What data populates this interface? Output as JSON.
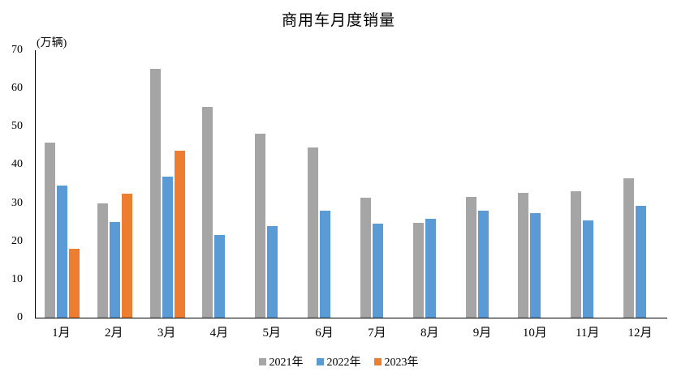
{
  "chart_data": {
    "type": "bar",
    "title": "商用车月度销量",
    "unit_label": "(万辆)",
    "categories": [
      "1月",
      "2月",
      "3月",
      "4月",
      "5月",
      "6月",
      "7月",
      "8月",
      "9月",
      "10月",
      "11月",
      "12月"
    ],
    "series": [
      {
        "name": "2021年",
        "color": "#A5A5A5",
        "values": [
          45.8,
          29.9,
          65.2,
          55.1,
          48.2,
          44.6,
          31.3,
          24.8,
          31.7,
          32.6,
          33.1,
          36.5
        ]
      },
      {
        "name": "2022年",
        "color": "#5B9BD5",
        "values": [
          34.5,
          25.0,
          37.0,
          21.6,
          24.0,
          28.1,
          24.6,
          25.9,
          28.0,
          27.3,
          25.4,
          29.2
        ]
      },
      {
        "name": "2023年",
        "color": "#ED7D31",
        "values": [
          18.0,
          32.4,
          43.7,
          null,
          null,
          null,
          null,
          null,
          null,
          null,
          null,
          null
        ]
      }
    ],
    "ylim": [
      0,
      70
    ],
    "yticks": [
      0,
      10,
      20,
      30,
      40,
      50,
      60,
      70
    ],
    "grid": false,
    "legend_position": "bottom",
    "axis_color": "#000000",
    "text_color": "#000000",
    "background_color": "#FFFFFF"
  }
}
